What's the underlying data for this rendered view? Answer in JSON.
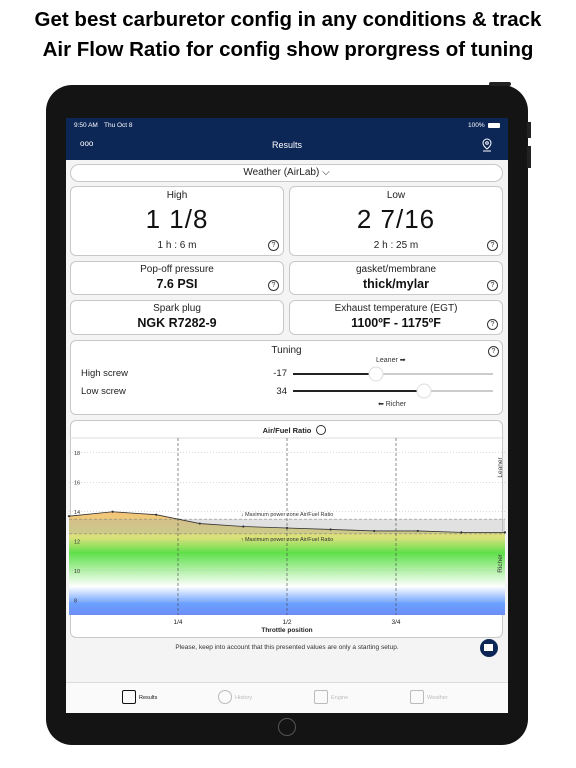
{
  "headline": [
    "Get best carburetor config in any conditions & track",
    "Air Flow Ratio for config show prorgress of tuning"
  ],
  "status_bar": {
    "time": "9:50 AM",
    "date": "Thu Oct 8",
    "battery": "100%"
  },
  "nav": {
    "title": "Results",
    "menu": "ooo"
  },
  "weather_selector": "Weather (AirLab)",
  "cards": [
    {
      "label": "High",
      "value": "1 1/8",
      "sub": "1 h : 6 m"
    },
    {
      "label": "Low",
      "value": "2 7/16",
      "sub": "2 h : 25 m"
    },
    {
      "label": "Pop-off pressure",
      "value": "7.6 PSI"
    },
    {
      "label": "gasket/membrane",
      "value": "thick/mylar"
    },
    {
      "label": "Spark plug",
      "value": "NGK R7282-9"
    },
    {
      "label": "Exhaust temperature (EGT)",
      "value": "1100ºF - 1175ºF"
    }
  ],
  "tuning": {
    "title": "Tuning",
    "leaner": "Leaner ➡",
    "richer": "⬅ Richer",
    "rows": [
      {
        "label": "High screw",
        "value": "-17"
      },
      {
        "label": "Low screw",
        "value": "34"
      }
    ]
  },
  "chart_data": {
    "type": "line",
    "title": "Air/Fuel Ratio",
    "x_label": "Throttle position",
    "x": [
      0,
      0.1,
      0.2,
      0.3,
      0.4,
      0.5,
      0.6,
      0.7,
      0.8,
      0.9,
      1.0
    ],
    "series": [
      {
        "name": "Air/Fuel Ratio",
        "color": "#333333",
        "values": [
          13.7,
          14.0,
          13.8,
          13.2,
          13.0,
          12.9,
          12.8,
          12.7,
          12.7,
          12.6,
          12.6
        ]
      }
    ],
    "xlim": [
      0,
      1
    ],
    "xticks": [
      {
        "value": 0.25,
        "label": "1/4"
      },
      {
        "value": 0.5,
        "label": "1/2"
      },
      {
        "value": 0.75,
        "label": "3/4"
      }
    ],
    "ylim": [
      7,
      19
    ],
    "yticks": [
      8,
      10,
      12,
      14,
      16,
      18
    ],
    "grid": true,
    "zone": {
      "upper": 13.5,
      "lower": 12.5,
      "upper_label": "↓ Maximum power zone Air/Fuel Ratio",
      "lower_label": "↑ Maximum power zone Air/Fuel Ratio"
    },
    "side_labels": {
      "top": "Leaner",
      "bottom": "Richer"
    }
  },
  "footer_note": "Please, keep into account that this presented values are only a starting setup.",
  "tabs": [
    "Results",
    "History",
    "Engine",
    "Weather"
  ]
}
